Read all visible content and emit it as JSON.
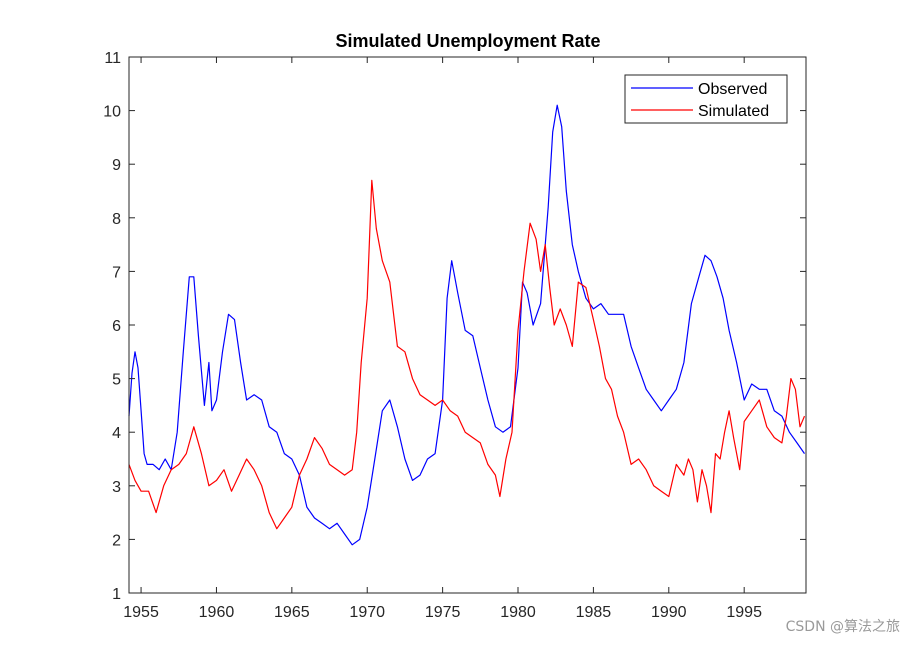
{
  "chart_data": {
    "type": "line",
    "title": "Simulated Unemployment Rate",
    "xlabel": "",
    "ylabel": "",
    "xlim": [
      1954.2,
      1999.1
    ],
    "ylim": [
      1,
      11
    ],
    "xticks": [
      1955,
      1960,
      1965,
      1970,
      1975,
      1980,
      1985,
      1990,
      1995
    ],
    "yticks": [
      1,
      2,
      3,
      4,
      5,
      6,
      7,
      8,
      9,
      10,
      11
    ],
    "grid": false,
    "legend_position": "top-right",
    "series": [
      {
        "name": "Observed",
        "color": "#0000ff",
        "x": [
          1954.2,
          1954.4,
          1954.6,
          1954.8,
          1955.0,
          1955.2,
          1955.4,
          1955.8,
          1956.2,
          1956.6,
          1957.0,
          1957.4,
          1957.8,
          1958.2,
          1958.5,
          1958.8,
          1959.2,
          1959.5,
          1959.7,
          1960.0,
          1960.4,
          1960.8,
          1961.2,
          1961.6,
          1962.0,
          1962.5,
          1963.0,
          1963.5,
          1964.0,
          1964.5,
          1965.0,
          1965.5,
          1966.0,
          1966.5,
          1967.0,
          1967.5,
          1968.0,
          1968.5,
          1969.0,
          1969.5,
          1970.0,
          1970.5,
          1971.0,
          1971.5,
          1972.0,
          1972.5,
          1973.0,
          1973.5,
          1974.0,
          1974.5,
          1975.0,
          1975.3,
          1975.6,
          1976.0,
          1976.5,
          1977.0,
          1977.5,
          1978.0,
          1978.5,
          1979.0,
          1979.5,
          1980.0,
          1980.3,
          1980.6,
          1981.0,
          1981.5,
          1982.0,
          1982.3,
          1982.6,
          1982.9,
          1983.2,
          1983.6,
          1984.0,
          1984.5,
          1985.0,
          1985.5,
          1986.0,
          1986.5,
          1987.0,
          1987.5,
          1988.0,
          1988.5,
          1989.0,
          1989.5,
          1990.0,
          1990.5,
          1991.0,
          1991.5,
          1992.0,
          1992.4,
          1992.8,
          1993.2,
          1993.6,
          1994.0,
          1994.5,
          1995.0,
          1995.5,
          1996.0,
          1996.5,
          1997.0,
          1997.5,
          1998.0,
          1998.5,
          1999.0
        ],
        "values": [
          4.3,
          5.1,
          5.5,
          5.2,
          4.4,
          3.6,
          3.4,
          3.4,
          3.3,
          3.5,
          3.3,
          4.0,
          5.5,
          6.9,
          6.9,
          5.8,
          4.5,
          5.3,
          4.4,
          4.6,
          5.5,
          6.2,
          6.1,
          5.3,
          4.6,
          4.7,
          4.6,
          4.1,
          4.0,
          3.6,
          3.5,
          3.2,
          2.6,
          2.4,
          2.3,
          2.2,
          2.3,
          2.1,
          1.9,
          2.0,
          2.6,
          3.5,
          4.4,
          4.6,
          4.1,
          3.5,
          3.1,
          3.2,
          3.5,
          3.6,
          4.6,
          6.5,
          7.2,
          6.6,
          5.9,
          5.8,
          5.2,
          4.6,
          4.1,
          4.0,
          4.1,
          5.2,
          6.8,
          6.6,
          6.0,
          6.4,
          8.2,
          9.6,
          10.1,
          9.7,
          8.5,
          7.5,
          7.0,
          6.5,
          6.3,
          6.4,
          6.2,
          6.2,
          6.2,
          5.6,
          5.2,
          4.8,
          4.6,
          4.4,
          4.6,
          4.8,
          5.3,
          6.4,
          6.9,
          7.3,
          7.2,
          6.9,
          6.5,
          5.9,
          5.3,
          4.6,
          4.9,
          4.8,
          4.8,
          4.4,
          4.3,
          4.0,
          3.8,
          3.6
        ]
      },
      {
        "name": "Simulated",
        "color": "#ff0000",
        "x": [
          1954.2,
          1954.6,
          1955.0,
          1955.5,
          1956.0,
          1956.5,
          1957.0,
          1957.5,
          1958.0,
          1958.5,
          1959.0,
          1959.5,
          1960.0,
          1960.5,
          1961.0,
          1961.5,
          1962.0,
          1962.5,
          1963.0,
          1963.5,
          1964.0,
          1964.5,
          1965.0,
          1965.5,
          1966.0,
          1966.5,
          1967.0,
          1967.5,
          1968.0,
          1968.5,
          1969.0,
          1969.3,
          1969.6,
          1970.0,
          1970.3,
          1970.6,
          1971.0,
          1971.5,
          1972.0,
          1972.5,
          1973.0,
          1973.5,
          1974.0,
          1974.5,
          1975.0,
          1975.5,
          1976.0,
          1976.5,
          1977.0,
          1977.5,
          1978.0,
          1978.5,
          1978.8,
          1979.2,
          1979.6,
          1980.0,
          1980.4,
          1980.8,
          1981.2,
          1981.5,
          1981.8,
          1982.1,
          1982.4,
          1982.8,
          1983.2,
          1983.6,
          1984.0,
          1984.5,
          1985.0,
          1985.4,
          1985.8,
          1986.2,
          1986.6,
          1987.0,
          1987.5,
          1988.0,
          1988.5,
          1989.0,
          1989.5,
          1990.0,
          1990.5,
          1991.0,
          1991.3,
          1991.6,
          1991.9,
          1992.2,
          1992.5,
          1992.8,
          1993.1,
          1993.4,
          1993.7,
          1994.0,
          1994.3,
          1994.7,
          1995.0,
          1995.5,
          1996.0,
          1996.5,
          1997.0,
          1997.5,
          1997.8,
          1998.1,
          1998.4,
          1998.7,
          1999.0
        ],
        "values": [
          3.4,
          3.1,
          2.9,
          2.9,
          2.5,
          3.0,
          3.3,
          3.4,
          3.6,
          4.1,
          3.6,
          3.0,
          3.1,
          3.3,
          2.9,
          3.2,
          3.5,
          3.3,
          3.0,
          2.5,
          2.2,
          2.4,
          2.6,
          3.2,
          3.5,
          3.9,
          3.7,
          3.4,
          3.3,
          3.2,
          3.3,
          4.0,
          5.3,
          6.5,
          8.7,
          7.8,
          7.2,
          6.8,
          5.6,
          5.5,
          5.0,
          4.7,
          4.6,
          4.5,
          4.6,
          4.4,
          4.3,
          4.0,
          3.9,
          3.8,
          3.4,
          3.2,
          2.8,
          3.5,
          4.0,
          5.9,
          7.0,
          7.9,
          7.6,
          7.0,
          7.5,
          6.7,
          6.0,
          6.3,
          6.0,
          5.6,
          6.8,
          6.7,
          6.1,
          5.6,
          5.0,
          4.8,
          4.3,
          4.0,
          3.4,
          3.5,
          3.3,
          3.0,
          2.9,
          2.8,
          3.4,
          3.2,
          3.5,
          3.3,
          2.7,
          3.3,
          3.0,
          2.5,
          3.6,
          3.5,
          4.0,
          4.4,
          3.9,
          3.3,
          4.2,
          4.4,
          4.6,
          4.1,
          3.9,
          3.8,
          4.3,
          5.0,
          4.8,
          4.1,
          4.3
        ]
      }
    ]
  },
  "watermark": "CSDN @算法之旅"
}
